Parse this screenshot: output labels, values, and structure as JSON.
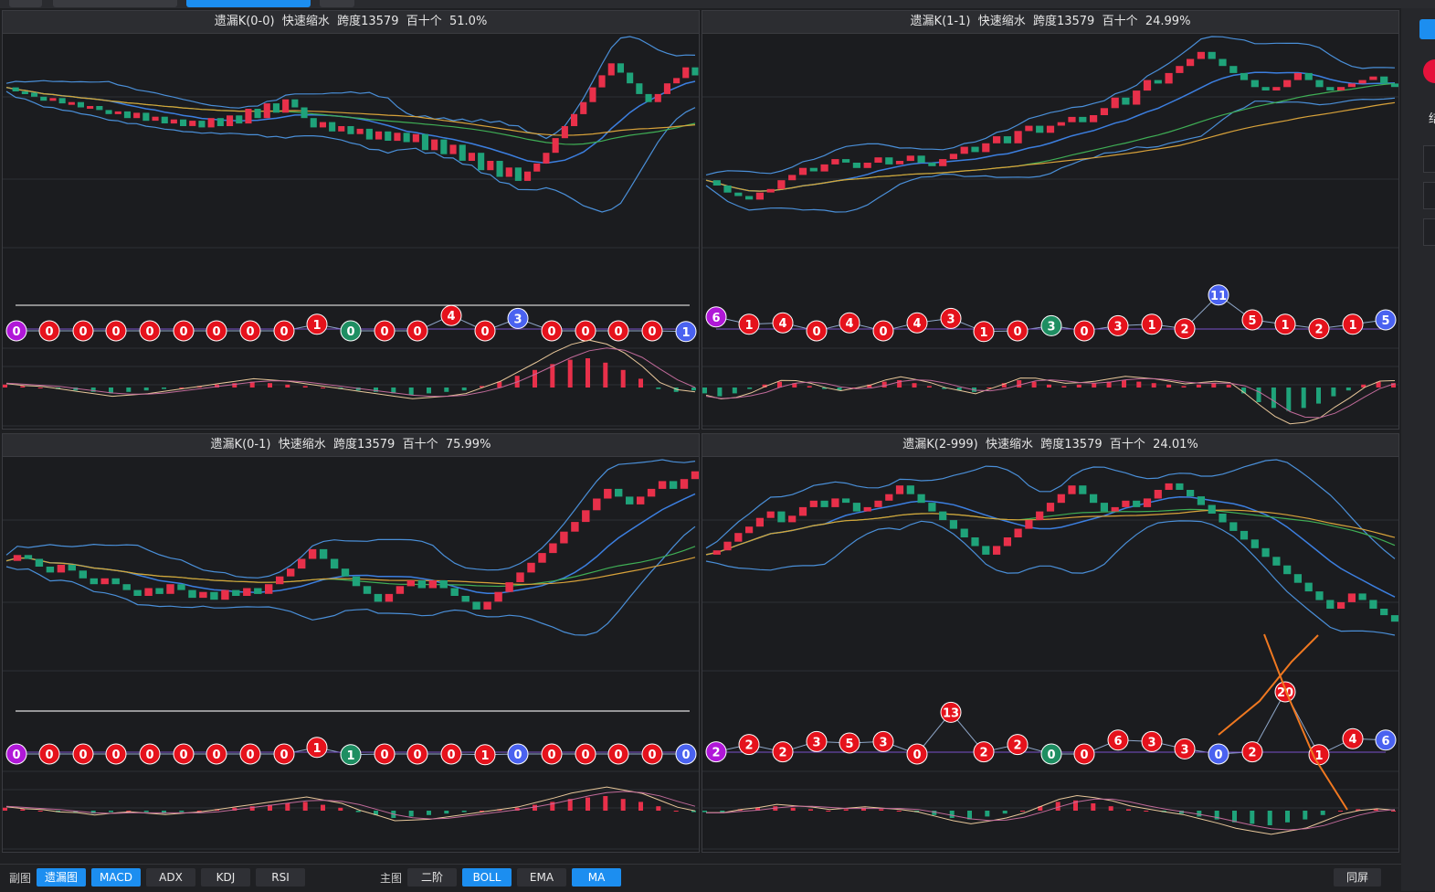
{
  "panels": [
    {
      "title": "遗漏K(0-0)  快速缩水  跨度13579  百十个  51.0%",
      "price": [
        50.5,
        50.2,
        50.1,
        49.8,
        49.5,
        49.7,
        49.3,
        49.4,
        49.0,
        49.1,
        48.8,
        48.5,
        48.7,
        48.2,
        48.6,
        48.0,
        48.3,
        47.8,
        48.1,
        47.6,
        48.0,
        47.5,
        48.2,
        47.6,
        48.4,
        47.8,
        48.9,
        48.2,
        49.3,
        48.6,
        49.6,
        49.0,
        48.2,
        47.5,
        47.9,
        47.2,
        47.6,
        47.0,
        47.4,
        46.6,
        47.2,
        46.5,
        47.1,
        46.4,
        47.0,
        45.8,
        46.6,
        45.5,
        46.2,
        45.0,
        45.6,
        44.3,
        45.0,
        43.8,
        44.5,
        43.5,
        44.2,
        44.8,
        45.6,
        46.7,
        47.6,
        48.5,
        49.4,
        50.5,
        51.4,
        52.3,
        51.6,
        50.8,
        50.0,
        49.4,
        50.0,
        50.8,
        51.2,
        52.0,
        51.4
      ],
      "markers": [
        [
          17,
          "0",
          "purple"
        ],
        [
          53,
          "0",
          "red"
        ],
        [
          90,
          "0",
          "red"
        ],
        [
          126,
          "0",
          "red"
        ],
        [
          163,
          "0",
          "red"
        ],
        [
          200,
          "0",
          "red"
        ],
        [
          236,
          "0",
          "red"
        ],
        [
          273,
          "0",
          "red"
        ],
        [
          310,
          "0",
          "red"
        ],
        [
          346,
          "1",
          "red"
        ],
        [
          383,
          "0",
          "green"
        ],
        [
          420,
          "0",
          "red"
        ],
        [
          456,
          "0",
          "red"
        ],
        [
          493,
          "4",
          "red"
        ],
        [
          530,
          "0",
          "red"
        ],
        [
          566,
          "3",
          "blue"
        ],
        [
          603,
          "0",
          "red"
        ],
        [
          640,
          "0",
          "red"
        ],
        [
          676,
          "0",
          "red"
        ],
        [
          713,
          "0",
          "red"
        ],
        [
          750,
          "1",
          "blue"
        ]
      ],
      "macd": [
        0.2,
        0.1,
        0.0,
        -0.1,
        -0.2,
        -0.3,
        -0.4,
        -0.3,
        -0.2,
        -0.1,
        0.0,
        0.1,
        0.2,
        0.3,
        0.4,
        0.3,
        0.2,
        0.1,
        0.0,
        -0.1,
        -0.2,
        -0.3,
        -0.4,
        -0.5,
        -0.4,
        -0.3,
        -0.2,
        0.1,
        0.4,
        0.8,
        1.2,
        1.6,
        1.9,
        2.0,
        1.7,
        1.2,
        0.6,
        -0.1,
        -0.3,
        -0.2
      ]
    },
    {
      "title": "遗漏K(1-1)  快速缩水  跨度13579  百十个  24.99%",
      "price": [
        45.5,
        45.2,
        44.8,
        44.6,
        44.4,
        44.8,
        45.0,
        45.5,
        45.8,
        46.2,
        46.0,
        46.4,
        46.7,
        46.5,
        46.2,
        46.5,
        46.8,
        46.4,
        46.6,
        46.9,
        46.5,
        46.3,
        46.7,
        47.0,
        47.4,
        47.1,
        47.6,
        48.0,
        47.6,
        48.3,
        48.6,
        48.2,
        48.6,
        48.8,
        49.1,
        48.8,
        49.2,
        49.6,
        50.2,
        49.8,
        50.6,
        51.2,
        51.0,
        51.6,
        52.0,
        52.4,
        52.8,
        52.4,
        52.0,
        51.6,
        51.2,
        50.8,
        50.6,
        50.8,
        51.2,
        51.6,
        51.2,
        50.8,
        50.6,
        50.8,
        51.0,
        51.2,
        51.4,
        51.0,
        50.8
      ],
      "markers": [
        [
          783,
          "6",
          "purple"
        ],
        [
          819,
          "1",
          "red"
        ],
        [
          856,
          "4",
          "red"
        ],
        [
          893,
          "0",
          "red"
        ],
        [
          929,
          "4",
          "red"
        ],
        [
          966,
          "0",
          "red"
        ],
        [
          1003,
          "4",
          "red"
        ],
        [
          1040,
          "3",
          "red"
        ],
        [
          1076,
          "1",
          "red"
        ],
        [
          1113,
          "0",
          "red"
        ],
        [
          1150,
          "3",
          "green"
        ],
        [
          1186,
          "0",
          "red"
        ],
        [
          1223,
          "3",
          "red"
        ],
        [
          1260,
          "1",
          "red"
        ],
        [
          1296,
          "2",
          "red"
        ],
        [
          1333,
          "11",
          "blue"
        ],
        [
          1370,
          "5",
          "red"
        ],
        [
          1406,
          "1",
          "red"
        ],
        [
          1443,
          "2",
          "red"
        ],
        [
          1480,
          "1",
          "red"
        ],
        [
          1516,
          "5",
          "blue"
        ]
      ],
      "macd": [
        -0.4,
        -0.6,
        -0.4,
        -0.1,
        0.2,
        0.4,
        0.3,
        0.1,
        -0.1,
        -0.2,
        0.0,
        0.2,
        0.4,
        0.5,
        0.3,
        0.1,
        -0.1,
        -0.2,
        -0.3,
        0.0,
        0.3,
        0.5,
        0.4,
        0.2,
        0.1,
        0.2,
        0.3,
        0.4,
        0.5,
        0.4,
        0.3,
        0.2,
        0.1,
        0.2,
        0.3,
        0.2,
        -0.4,
        -1.0,
        -1.4,
        -1.6,
        -1.4,
        -1.1,
        -0.6,
        -0.2,
        0.2,
        0.4,
        0.3
      ]
    },
    {
      "title": "遗漏K(0-1)  快速缩水  跨度13579  百十个  75.99%",
      "price": [
        48.0,
        48.3,
        48.1,
        47.7,
        47.4,
        47.8,
        47.5,
        47.1,
        46.8,
        47.1,
        46.8,
        46.5,
        46.2,
        46.6,
        46.3,
        46.8,
        46.5,
        46.1,
        46.4,
        46.0,
        46.5,
        46.2,
        46.6,
        46.3,
        46.8,
        47.2,
        47.6,
        48.1,
        48.6,
        48.1,
        47.6,
        47.2,
        46.7,
        46.3,
        45.9,
        46.3,
        46.7,
        47.0,
        46.6,
        47.0,
        46.6,
        46.2,
        45.9,
        45.5,
        45.9,
        46.4,
        46.9,
        47.4,
        47.9,
        48.4,
        48.9,
        49.5,
        50.0,
        50.6,
        51.2,
        51.7,
        51.3,
        50.9,
        51.3,
        51.7,
        52.1,
        51.7,
        52.2,
        52.6
      ],
      "markers": [
        [
          17,
          "0",
          "purple"
        ],
        [
          53,
          "0",
          "red"
        ],
        [
          90,
          "0",
          "red"
        ],
        [
          126,
          "0",
          "red"
        ],
        [
          163,
          "0",
          "red"
        ],
        [
          200,
          "0",
          "red"
        ],
        [
          236,
          "0",
          "red"
        ],
        [
          273,
          "0",
          "red"
        ],
        [
          310,
          "0",
          "red"
        ],
        [
          346,
          "1",
          "red"
        ],
        [
          383,
          "1",
          "green"
        ],
        [
          420,
          "0",
          "red"
        ],
        [
          456,
          "0",
          "red"
        ],
        [
          493,
          "0",
          "red"
        ],
        [
          530,
          "1",
          "red"
        ],
        [
          566,
          "0",
          "blue"
        ],
        [
          603,
          "0",
          "red"
        ],
        [
          640,
          "0",
          "red"
        ],
        [
          676,
          "0",
          "red"
        ],
        [
          713,
          "0",
          "red"
        ],
        [
          750,
          "0",
          "blue"
        ]
      ],
      "macd": [
        0.2,
        0.1,
        0.0,
        -0.1,
        -0.1,
        -0.2,
        -0.1,
        0.0,
        -0.1,
        -0.2,
        -0.1,
        0.0,
        0.1,
        0.2,
        0.3,
        0.4,
        0.5,
        0.6,
        0.4,
        0.2,
        -0.1,
        -0.3,
        -0.5,
        -0.4,
        -0.3,
        -0.2,
        -0.1,
        0.0,
        0.1,
        0.2,
        0.4,
        0.6,
        0.8,
        0.9,
        1.0,
        0.8,
        0.6,
        0.3,
        0.0,
        -0.1
      ]
    },
    {
      "title": "遗漏K(2-999)  快速缩水  跨度13579  百十个  24.01%",
      "price": [
        48.6,
        48.8,
        49.2,
        49.6,
        49.9,
        50.3,
        50.6,
        50.1,
        50.4,
        50.8,
        51.1,
        50.8,
        51.2,
        51.0,
        50.6,
        50.8,
        51.1,
        51.4,
        51.8,
        51.4,
        51.0,
        50.6,
        50.2,
        49.8,
        49.4,
        49.0,
        48.6,
        49.0,
        49.4,
        49.8,
        50.2,
        50.6,
        51.0,
        51.4,
        51.8,
        51.4,
        51.0,
        50.6,
        50.8,
        51.1,
        50.8,
        51.2,
        51.6,
        51.9,
        51.6,
        51.3,
        50.9,
        50.5,
        50.1,
        49.7,
        49.3,
        48.9,
        48.5,
        48.1,
        47.7,
        47.3,
        46.9,
        46.5,
        46.1,
        46.4,
        46.8,
        46.5,
        46.1,
        45.8,
        45.5
      ],
      "markers": [
        [
          783,
          "2",
          "purple"
        ],
        [
          819,
          "2",
          "red"
        ],
        [
          856,
          "2",
          "red"
        ],
        [
          893,
          "3",
          "red"
        ],
        [
          929,
          "5",
          "red"
        ],
        [
          966,
          "3",
          "red"
        ],
        [
          1003,
          "0",
          "red"
        ],
        [
          1040,
          "13",
          "red"
        ],
        [
          1076,
          "2",
          "red"
        ],
        [
          1113,
          "2",
          "red"
        ],
        [
          1150,
          "0",
          "green"
        ],
        [
          1186,
          "0",
          "red"
        ],
        [
          1223,
          "6",
          "red"
        ],
        [
          1260,
          "3",
          "red"
        ],
        [
          1296,
          "3",
          "red"
        ],
        [
          1333,
          "0",
          "blue"
        ],
        [
          1370,
          "2",
          "red"
        ],
        [
          1406,
          "20",
          "red"
        ],
        [
          1443,
          "1",
          "red"
        ],
        [
          1480,
          "4",
          "red"
        ],
        [
          1516,
          "6",
          "blue"
        ]
      ],
      "macd": [
        -0.1,
        -0.1,
        0.1,
        0.2,
        0.3,
        0.2,
        0.1,
        0.0,
        0.1,
        0.2,
        0.1,
        0.0,
        -0.1,
        -0.3,
        -0.5,
        -0.6,
        -0.4,
        -0.2,
        0.0,
        0.3,
        0.6,
        0.7,
        0.5,
        0.3,
        0.1,
        0.0,
        -0.1,
        -0.2,
        -0.4,
        -0.6,
        -0.8,
        -0.9,
        -1.0,
        -0.8,
        -0.6,
        -0.3,
        0.0,
        0.1,
        0.1,
        0.0
      ]
    }
  ],
  "right_strip": {
    "char": "结"
  },
  "bottom": {
    "sub_label": "副图",
    "sub_buttons": [
      "遗漏图",
      "MACD",
      "ADX",
      "KDJ",
      "RSI"
    ],
    "sub_active": [
      true,
      true,
      false,
      false,
      false
    ],
    "main_label": "主图",
    "main_buttons": [
      "二阶",
      "BOLL",
      "EMA",
      "MA"
    ],
    "main_active": [
      false,
      true,
      false,
      true
    ],
    "right_button": "同屏"
  },
  "colors": {
    "up": "#e8304a",
    "down": "#1fa37a",
    "accent": "#1c8ef0",
    "badge_red": "#e5121c",
    "badge_blue": "#4a62f0",
    "badge_green": "#1e8e62",
    "badge_purple": "#b018d8"
  }
}
